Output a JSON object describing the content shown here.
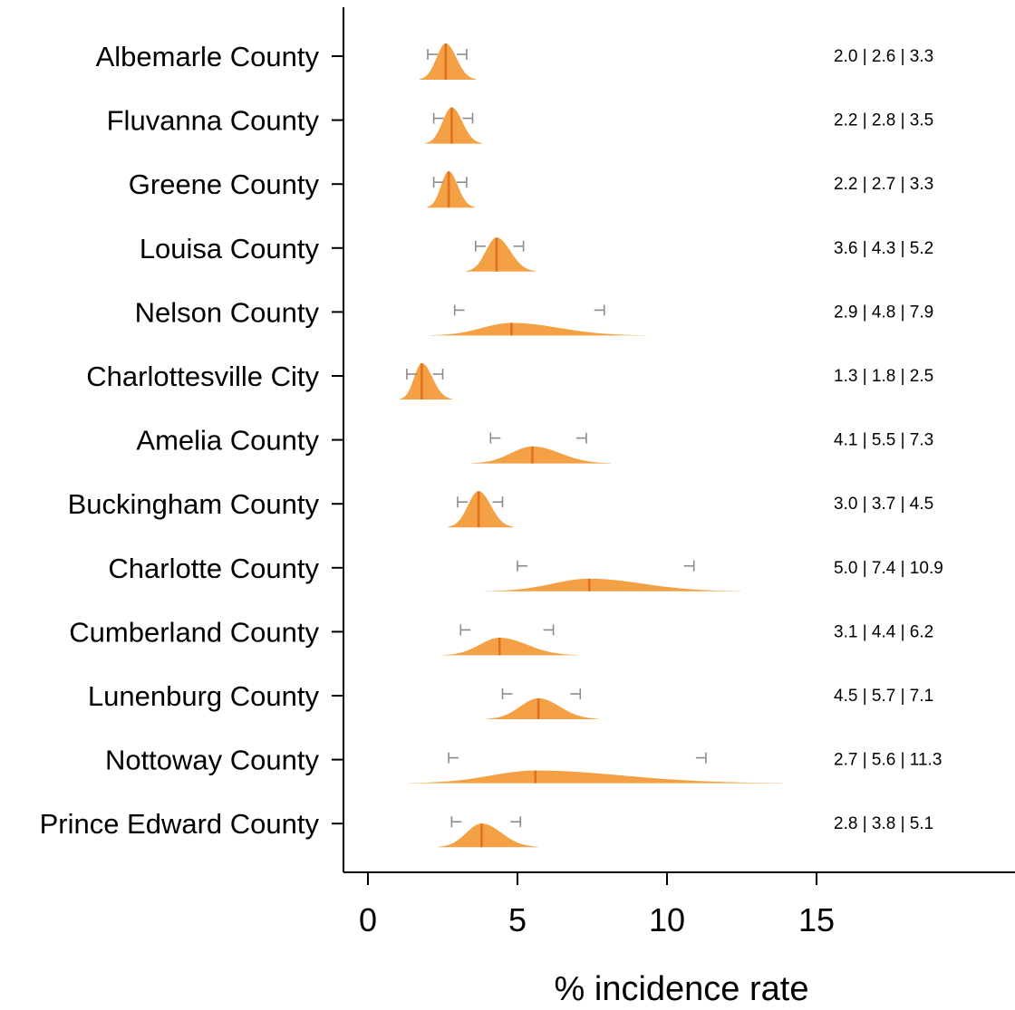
{
  "chart_data": {
    "type": "violin",
    "xlabel": "% incidence rate",
    "xlim": [
      0,
      20
    ],
    "xticks": [
      0,
      5,
      10,
      15
    ],
    "grid": false,
    "accent_color": "#f39b3a",
    "median_color": "#e0701c",
    "ci_color": "#8c8c8c",
    "categories": [
      "Albemarle County",
      "Fluvanna County",
      "Greene County",
      "Louisa County",
      "Nelson County",
      "Charlottesville City",
      "Amelia County",
      "Buckingham County",
      "Charlotte County",
      "Cumberland County",
      "Lunenburg County",
      "Nottoway County",
      "Prince Edward County"
    ],
    "lower": [
      2.0,
      2.2,
      2.2,
      3.6,
      2.9,
      1.3,
      4.1,
      3.0,
      5.0,
      3.1,
      4.5,
      2.7,
      2.8
    ],
    "median": [
      2.6,
      2.8,
      2.7,
      4.3,
      4.8,
      1.8,
      5.5,
      3.7,
      7.4,
      4.4,
      5.7,
      5.6,
      3.8
    ],
    "upper": [
      3.3,
      3.5,
      3.3,
      5.2,
      7.9,
      2.5,
      7.3,
      4.5,
      10.9,
      6.2,
      7.1,
      11.3,
      5.1
    ],
    "value_labels": [
      "2.0 | 2.6 | 3.3",
      "2.2 | 2.8 | 3.5",
      "2.2 | 2.7 | 3.3",
      "3.6 | 4.3 | 5.2",
      "2.9 | 4.8 | 7.9",
      "1.3 | 1.8 | 2.5",
      "4.1 | 5.5 | 7.3",
      "3.0 | 3.7 | 4.5",
      "5.0 | 7.4 | 10.9",
      "3.1 | 4.4 | 6.2",
      "4.5 | 5.7 | 7.1",
      "2.7 | 5.6 | 11.3",
      "2.8 | 3.8 | 5.1"
    ]
  }
}
